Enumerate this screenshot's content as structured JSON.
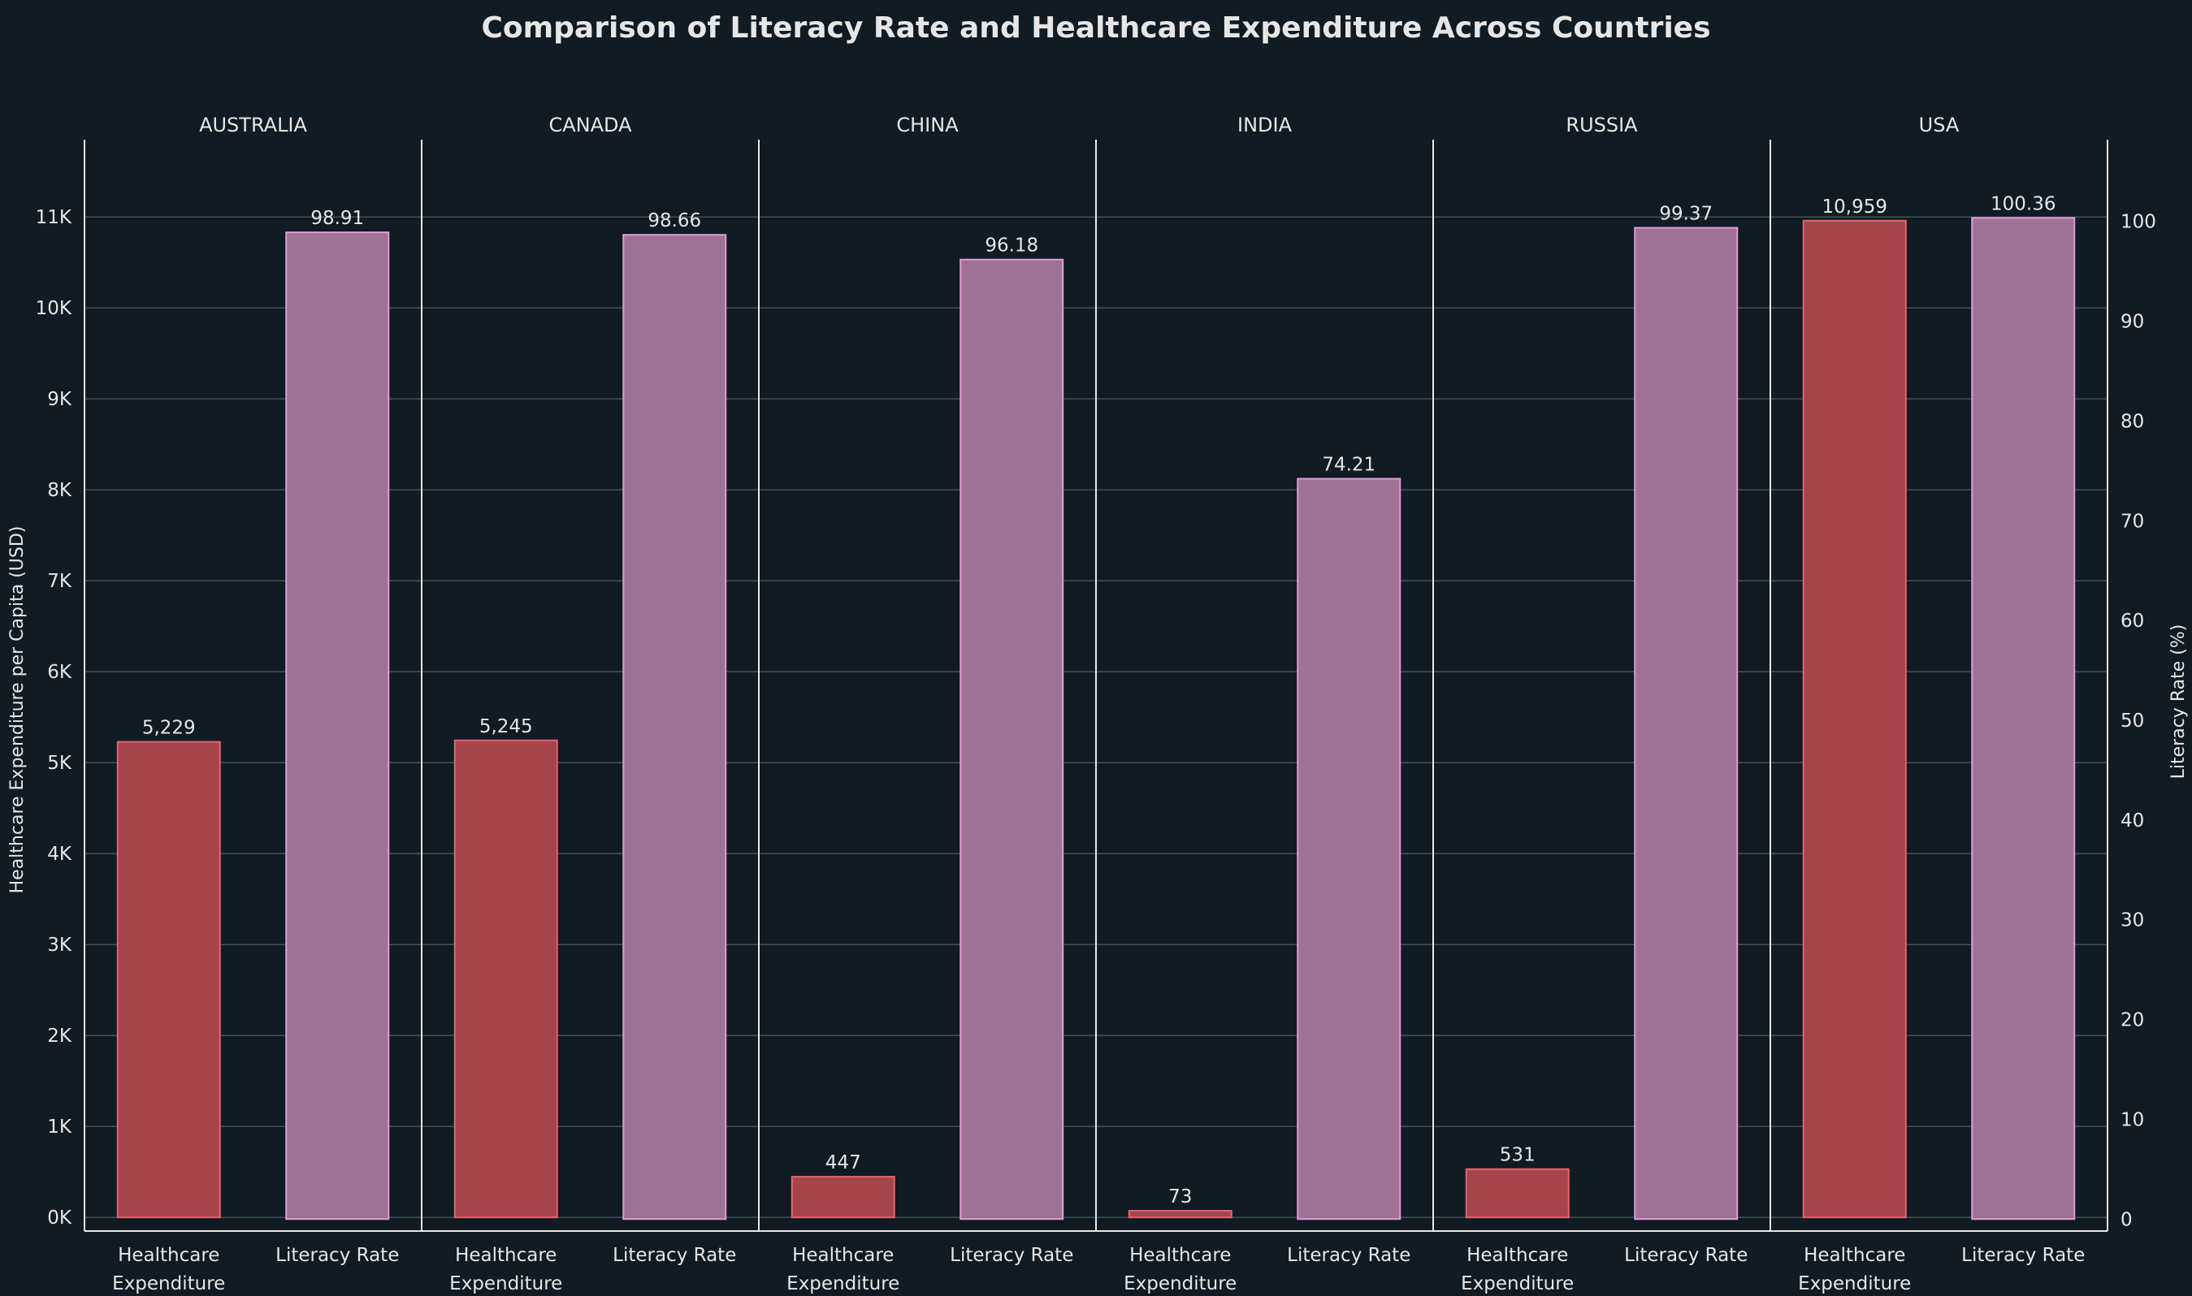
{
  "chart_data": {
    "type": "bar",
    "title": "Comparison of Literacy Rate and Healthcare Expenditure Across Countries",
    "ylabel_left": "Healthcare Expenditure per Capita (USD)",
    "ylabel_right": "Literacy Rate (%)",
    "facets": [
      "AUSTRALIA",
      "CANADA",
      "CHINA",
      "INDIA",
      "RUSSIA",
      "USA"
    ],
    "category_labels": [
      "Healthcare Expenditure",
      "Literacy Rate"
    ],
    "series": [
      {
        "name": "Healthcare Expenditure",
        "axis": "left",
        "values": [
          5229,
          5245,
          447,
          73,
          531,
          10959
        ],
        "value_labels": [
          "5,229",
          "5,245",
          "447",
          "73",
          "531",
          "10,959"
        ],
        "color": "#a6444c",
        "edge": "#e0656f"
      },
      {
        "name": "Literacy Rate",
        "axis": "right",
        "values": [
          98.91,
          98.66,
          96.18,
          74.21,
          99.37,
          100.36
        ],
        "value_labels": [
          "98.91",
          "98.66",
          "96.18",
          "74.21",
          "99.37",
          "100.36"
        ],
        "color": "#9e7293",
        "edge": "#e29ad8"
      }
    ],
    "left_axis": {
      "range": [
        -150,
        11850
      ],
      "ticks": [
        0,
        1000,
        2000,
        3000,
        4000,
        5000,
        6000,
        7000,
        8000,
        9000,
        10000,
        11000
      ],
      "tick_labels": [
        "0K",
        "1K",
        "2K",
        "3K",
        "4K",
        "5K",
        "6K",
        "7K",
        "8K",
        "9K",
        "10K",
        "11K"
      ]
    },
    "right_axis": {
      "range": [
        -1.2,
        108.2
      ],
      "ticks": [
        0,
        10,
        20,
        30,
        40,
        50,
        60,
        70,
        80,
        90,
        100
      ],
      "tick_labels": [
        "0",
        "10",
        "20",
        "30",
        "40",
        "50",
        "60",
        "70",
        "80",
        "90",
        "100"
      ]
    },
    "grid": true,
    "legend": "none"
  }
}
